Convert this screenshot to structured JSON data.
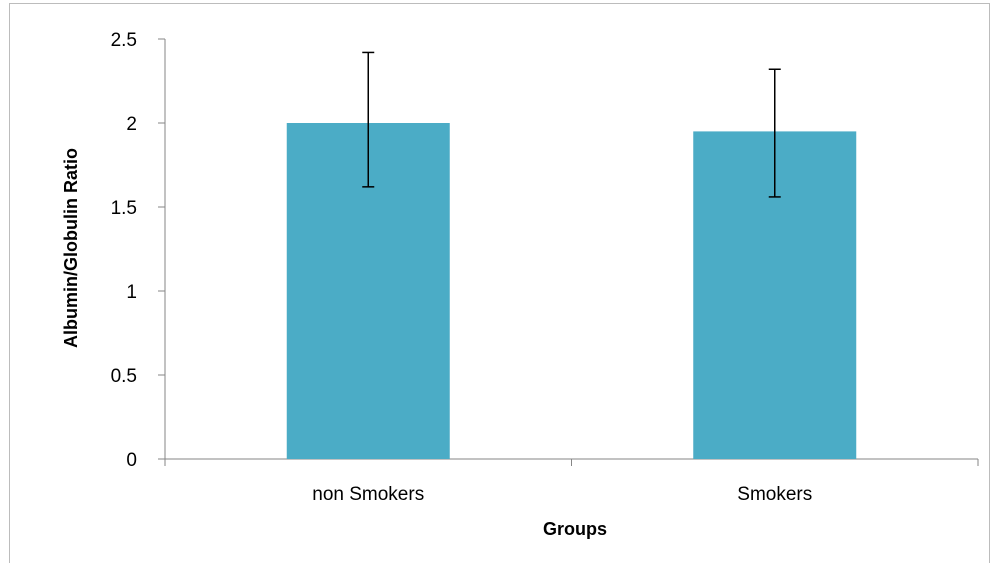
{
  "chart_data": {
    "type": "bar",
    "categories": [
      "non Smokers",
      "Smokers"
    ],
    "values": [
      2.0,
      1.95
    ],
    "error_low": [
      1.62,
      1.56
    ],
    "error_high": [
      2.42,
      2.32
    ],
    "xlabel": "Groups",
    "ylabel": "Albumin/Globulin Ratio",
    "ylim": [
      0,
      2.5
    ],
    "yticks": [
      0,
      0.5,
      1,
      1.5,
      2,
      2.5
    ],
    "ytick_labels": [
      "0",
      "0.5",
      "1",
      "1.5",
      "2",
      "2.5"
    ],
    "grid": false,
    "bar_color": "#4bacc6"
  }
}
